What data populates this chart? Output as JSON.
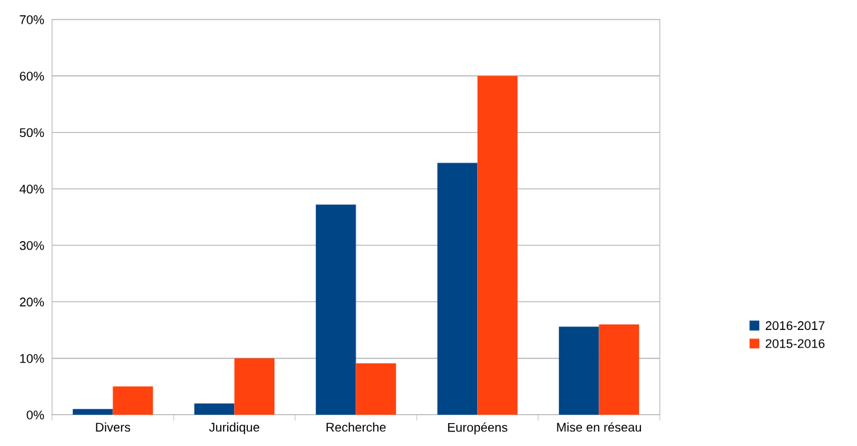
{
  "chart_data": {
    "type": "bar",
    "categories": [
      "Divers",
      "Juridique",
      "Recherche",
      "Européens",
      "Mise en réseau"
    ],
    "series": [
      {
        "name": "2016-2017",
        "color": "#004586",
        "values": [
          1,
          2,
          37.2,
          44.6,
          15.6
        ]
      },
      {
        "name": "2015-2016",
        "color": "#ff420e",
        "values": [
          5,
          10,
          9.1,
          60,
          16
        ]
      }
    ],
    "ylim": [
      0,
      70
    ],
    "yticks": [
      {
        "value": 0,
        "label": "0%"
      },
      {
        "value": 10,
        "label": "10%"
      },
      {
        "value": 20,
        "label": "20%"
      },
      {
        "value": 30,
        "label": "30%"
      },
      {
        "value": 40,
        "label": "40%"
      },
      {
        "value": 50,
        "label": "50%"
      },
      {
        "value": 60,
        "label": "60%"
      },
      {
        "value": 70,
        "label": "70%"
      }
    ],
    "grid": "y",
    "legend": "right"
  }
}
